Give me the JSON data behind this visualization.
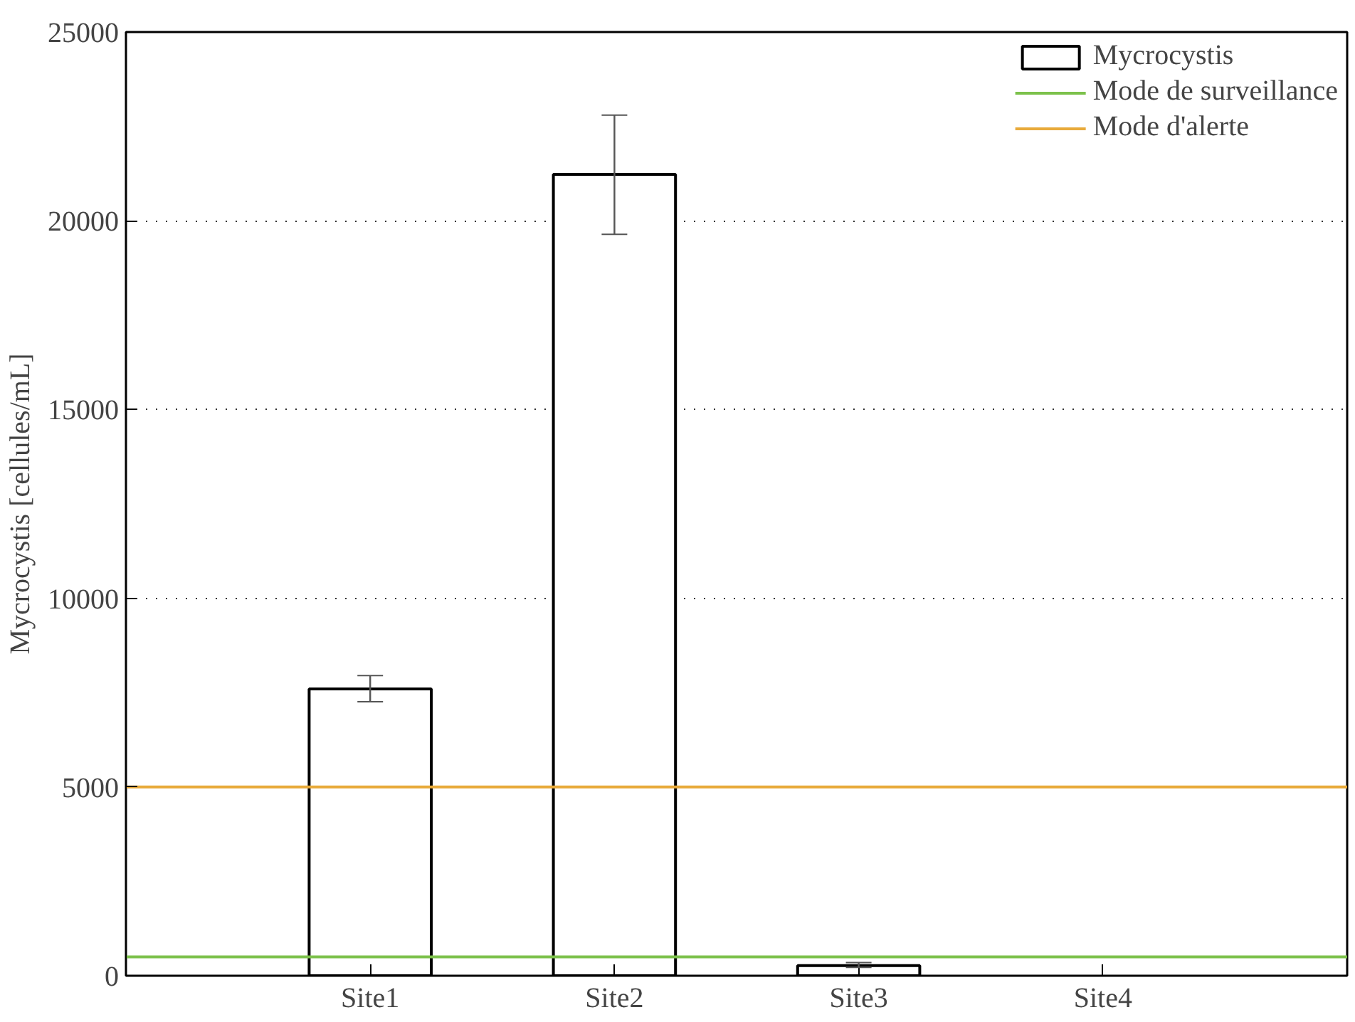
{
  "chart_data": {
    "type": "bar",
    "ylabel": "Mycrocystis [cellules/mL]",
    "categories": [
      "Site1",
      "Site2",
      "Site3",
      "Site4"
    ],
    "series": [
      {
        "name": "Mycrocystis",
        "color": "#ffffff",
        "values": [
          7600,
          21230,
          270,
          null
        ],
        "errors": [
          [
            7260,
            7950
          ],
          [
            19640,
            22800
          ],
          [
            220,
            350
          ],
          null
        ]
      }
    ],
    "ylim": [
      0,
      25000
    ],
    "yticks": [
      0,
      5000,
      10000,
      15000,
      20000,
      25000
    ],
    "grid": "y",
    "legend": "top right",
    "ref_lines": [
      {
        "axis": "y",
        "value": 500,
        "label": "Mode de surveillance",
        "color": "#7cc14b"
      },
      {
        "axis": "y",
        "value": 5000,
        "label": "Mode d'alerte",
        "color": "#e8aa3a"
      }
    ]
  }
}
